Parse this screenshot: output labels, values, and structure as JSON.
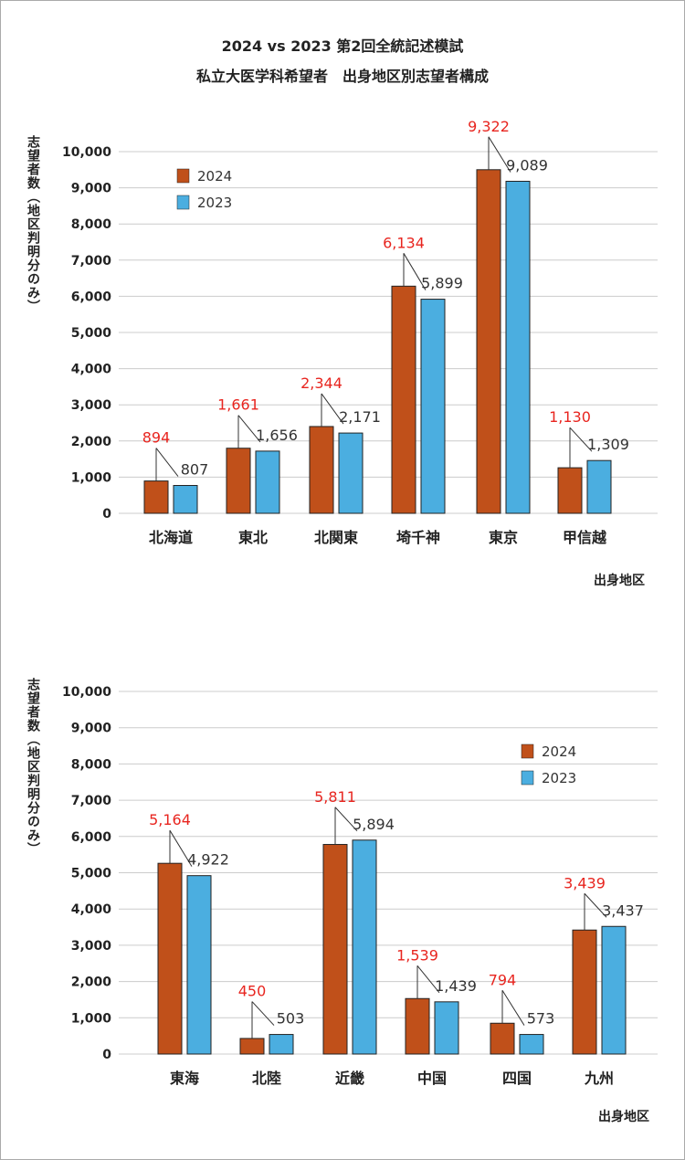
{
  "title_line1": "2024 vs 2023 第2回全統記述模試",
  "title_line2": "私立大医学科希望者　出身地区別志望者構成",
  "colors": {
    "y2024": "#c0501a",
    "y2023": "#4baee0",
    "label2024": "#e8251f",
    "label2023": "#333333",
    "grid": "#cccccc"
  },
  "chart_data": [
    {
      "type": "bar",
      "ylabel": "志望者数（地区判明分のみ）",
      "xlabel": "出身地区",
      "ylim": [
        0,
        10000
      ],
      "yticks": [
        "0",
        "1,000",
        "2,000",
        "3,000",
        "4,000",
        "5,000",
        "6,000",
        "7,000",
        "8,000",
        "9,000",
        "10,000"
      ],
      "categories": [
        "北海道",
        "東北",
        "北関東",
        "埼千神",
        "東京",
        "甲信越"
      ],
      "series": [
        {
          "name": "2024",
          "values": [
            894,
            1661,
            2344,
            6134,
            9322,
            1130
          ],
          "labels": [
            "894",
            "1,661",
            "2,344",
            "6,134",
            "9,322",
            "1,130"
          ]
        },
        {
          "name": "2023",
          "values": [
            807,
            1656,
            2171,
            5899,
            9089,
            1309
          ],
          "labels": [
            "807",
            "1,656",
            "2,171",
            "5,899",
            "9,089",
            "1,309"
          ]
        }
      ],
      "bar_heights_2024": [
        894,
        1800,
        2400,
        6280,
        9500,
        1260
      ],
      "bar_heights_2023": [
        770,
        1720,
        2220,
        5920,
        9180,
        1460
      ],
      "legend": "top-left",
      "grid": true
    },
    {
      "type": "bar",
      "ylabel": "志望者数（地区判明分のみ）",
      "xlabel": "出身地区",
      "ylim": [
        0,
        10000
      ],
      "yticks": [
        "0",
        "1,000",
        "2,000",
        "3,000",
        "4,000",
        "5,000",
        "6,000",
        "7,000",
        "8,000",
        "9,000",
        "10,000"
      ],
      "categories": [
        "東海",
        "北陸",
        "近畿",
        "中国",
        "四国",
        "九州"
      ],
      "series": [
        {
          "name": "2024",
          "values": [
            5164,
            450,
            5811,
            1539,
            794,
            3439
          ],
          "labels": [
            "5,164",
            "450",
            "5,811",
            "1,539",
            "794",
            "3,439"
          ]
        },
        {
          "name": "2023",
          "values": [
            4922,
            503,
            5894,
            1439,
            573,
            3437
          ],
          "labels": [
            "4,922",
            "503",
            "5,894",
            "1,439",
            "573",
            "3,437"
          ]
        }
      ],
      "bar_heights_2024": [
        5260,
        430,
        5780,
        1530,
        850,
        3420
      ],
      "bar_heights_2023": [
        4920,
        540,
        5900,
        1440,
        540,
        3520
      ],
      "legend": "top-right",
      "grid": true
    }
  ]
}
